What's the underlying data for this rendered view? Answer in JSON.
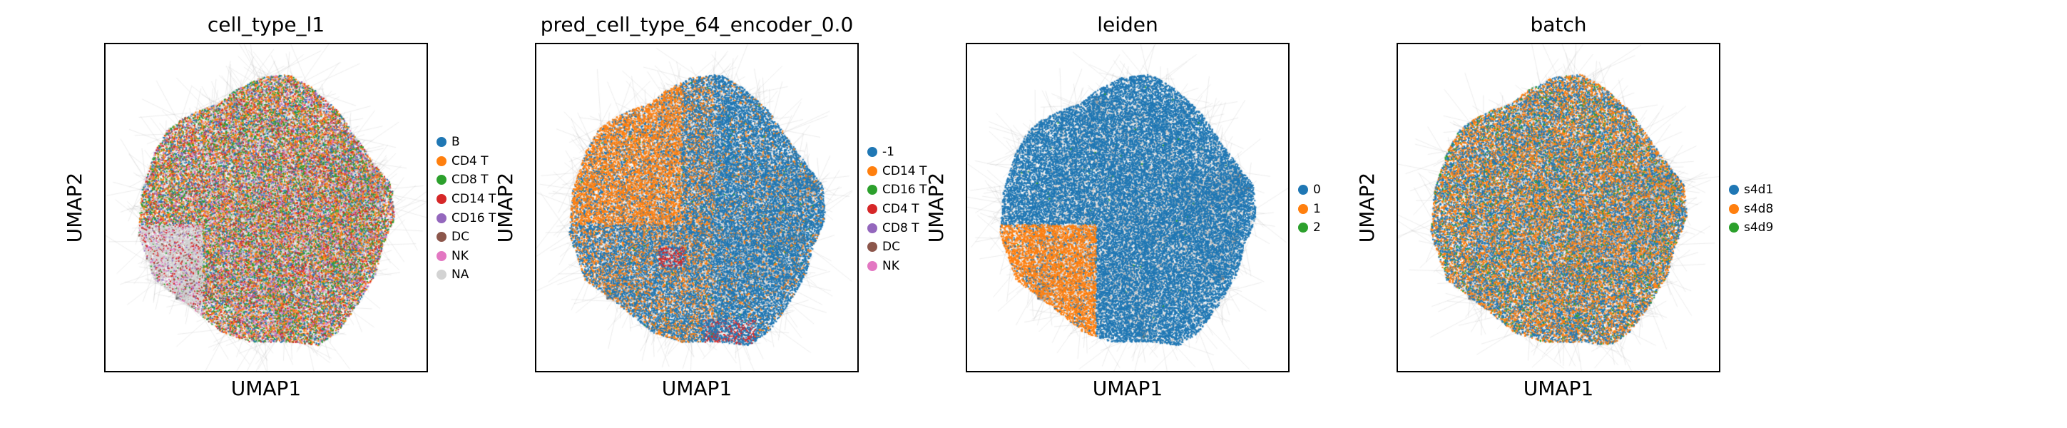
{
  "chart_data": [
    {
      "type": "scatter",
      "title": "cell_type_l1",
      "xlabel": "UMAP1",
      "ylabel": "UMAP2",
      "legend_position": "right",
      "grid": false,
      "categories": [
        "B",
        "CD4 T",
        "CD8 T",
        "CD14 T",
        "CD16 T",
        "DC",
        "NK",
        "NA"
      ],
      "colors": [
        "#1f77b4",
        "#ff7f0e",
        "#2ca02c",
        "#d62728",
        "#9467bd",
        "#8c564b",
        "#e377c2",
        "#d3d3d3"
      ]
    },
    {
      "type": "scatter",
      "title": "pred_cell_type_64_encoder_0.0",
      "xlabel": "UMAP1",
      "ylabel": "UMAP2",
      "legend_position": "right",
      "grid": false,
      "categories": [
        "-1",
        "CD14 T",
        "CD16 T",
        "CD4 T",
        "CD8 T",
        "DC",
        "NK"
      ],
      "colors": [
        "#1f77b4",
        "#ff7f0e",
        "#2ca02c",
        "#d62728",
        "#9467bd",
        "#8c564b",
        "#e377c2"
      ]
    },
    {
      "type": "scatter",
      "title": "leiden",
      "xlabel": "UMAP1",
      "ylabel": "UMAP2",
      "legend_position": "right",
      "grid": false,
      "categories": [
        "0",
        "1",
        "2"
      ],
      "colors": [
        "#1f77b4",
        "#ff7f0e",
        "#2ca02c"
      ]
    },
    {
      "type": "scatter",
      "title": "batch",
      "xlabel": "UMAP1",
      "ylabel": "UMAP2",
      "legend_position": "right",
      "grid": false,
      "categories": [
        "s4d1",
        "s4d8",
        "s4d9"
      ],
      "colors": [
        "#1f77b4",
        "#ff7f0e",
        "#2ca02c"
      ]
    }
  ]
}
